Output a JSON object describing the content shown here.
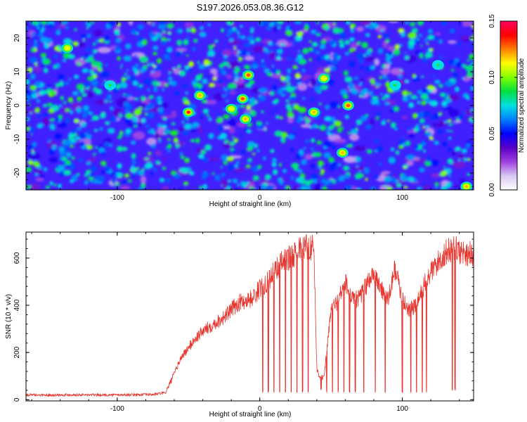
{
  "title": "S197.2026.053.08.36.G12",
  "chart_data": [
    {
      "type": "heatmap",
      "xlabel": "Height of straight line (km)",
      "ylabel": "Frequency (Hz)",
      "xlim": [
        -164,
        150
      ],
      "ylim": [
        -25,
        25
      ],
      "xticks": [
        -100,
        0,
        100
      ],
      "xtick_labels": [
        "-100",
        "0",
        "100"
      ],
      "yticks": [
        -20,
        -10,
        0,
        10,
        20
      ],
      "ytick_labels": [
        "-20",
        "-10",
        "0",
        "10",
        "20"
      ],
      "colorbar": {
        "label": "Normalized spectral amplitude",
        "range": [
          0,
          0.15
        ],
        "ticks": [
          0,
          0.05,
          0.1,
          0.15
        ],
        "tick_labels": [
          "0.00",
          "0.05",
          "0.10",
          "0.15"
        ],
        "colors": [
          "#ffffff",
          "#d9c8f2",
          "#a040e0",
          "#5a00c8",
          "#0000ff",
          "#0080ff",
          "#00e0e0",
          "#00e040",
          "#80ff00",
          "#ffff00",
          "#ff8000",
          "#ff0000",
          "#ff0060"
        ]
      },
      "background_color": "#4020ff",
      "hotspots": [
        {
          "x": -50,
          "y": -2,
          "v": 0.14
        },
        {
          "x": -42,
          "y": 3,
          "v": 0.12
        },
        {
          "x": -20,
          "y": -1,
          "v": 0.11
        },
        {
          "x": -12,
          "y": 2,
          "v": 0.13
        },
        {
          "x": -10,
          "y": -4,
          "v": 0.12
        },
        {
          "x": -8,
          "y": 9,
          "v": 0.13
        },
        {
          "x": 38,
          "y": -2,
          "v": 0.12
        },
        {
          "x": 45,
          "y": 8,
          "v": 0.11
        },
        {
          "x": 62,
          "y": 0,
          "v": 0.13
        },
        {
          "x": 58,
          "y": -14,
          "v": 0.12
        },
        {
          "x": -135,
          "y": 17,
          "v": 0.11
        },
        {
          "x": 145,
          "y": -24,
          "v": 0.12
        },
        {
          "x": -105,
          "y": 6,
          "v": 0.09
        },
        {
          "x": 95,
          "y": 6,
          "v": 0.09
        },
        {
          "x": 125,
          "y": 12,
          "v": 0.09
        }
      ]
    },
    {
      "type": "line",
      "xlabel": "Height of straight line (km)",
      "ylabel": "SNR (10 * v/v)",
      "xlim": [
        -164,
        150
      ],
      "ylim": [
        -5,
        710
      ],
      "xticks": [
        -100,
        0,
        100
      ],
      "xtick_labels": [
        "-100",
        "0",
        "100"
      ],
      "yticks": [
        0,
        200,
        400,
        600
      ],
      "ytick_labels": [
        "0",
        "200",
        "400",
        "600"
      ],
      "series": [
        {
          "name": "SNR",
          "color": "#e8352e",
          "x": [
            -164,
            -150,
            -130,
            -110,
            -90,
            -75,
            -66,
            -60,
            -55,
            -50,
            -45,
            -40,
            -35,
            -30,
            -25,
            -20,
            -15,
            -10,
            -5,
            0,
            5,
            10,
            15,
            20,
            25,
            30,
            35,
            38,
            40,
            42,
            45,
            50,
            55,
            60,
            65,
            70,
            75,
            80,
            85,
            90,
            95,
            100,
            105,
            110,
            115,
            120,
            125,
            130,
            135,
            140,
            145,
            150
          ],
          "y": [
            20,
            20,
            21,
            20,
            21,
            22,
            30,
            110,
            180,
            220,
            260,
            290,
            310,
            330,
            350,
            380,
            410,
            420,
            430,
            470,
            500,
            540,
            580,
            600,
            620,
            640,
            650,
            640,
            130,
            100,
            90,
            380,
            420,
            500,
            420,
            430,
            490,
            540,
            470,
            420,
            560,
            420,
            380,
            400,
            480,
            540,
            580,
            620,
            640,
            630,
            620,
            620
          ]
        }
      ],
      "dropouts": [
        {
          "x": 2,
          "y": 30
        },
        {
          "x": 6,
          "y": 30
        },
        {
          "x": 10,
          "y": 30
        },
        {
          "x": 14,
          "y": 30
        },
        {
          "x": 18,
          "y": 30
        },
        {
          "x": 22,
          "y": 30
        },
        {
          "x": 26,
          "y": 30
        },
        {
          "x": 30,
          "y": 30
        },
        {
          "x": 34,
          "y": 30
        },
        {
          "x": 43,
          "y": 40
        },
        {
          "x": 47,
          "y": 30
        },
        {
          "x": 51,
          "y": 30
        },
        {
          "x": 55,
          "y": 30
        },
        {
          "x": 59,
          "y": 30
        },
        {
          "x": 63,
          "y": 30
        },
        {
          "x": 67,
          "y": 30
        },
        {
          "x": 73,
          "y": 30
        },
        {
          "x": 81,
          "y": 30
        },
        {
          "x": 88,
          "y": 30
        },
        {
          "x": 100,
          "y": 30
        },
        {
          "x": 106,
          "y": 30
        },
        {
          "x": 110,
          "y": 30
        },
        {
          "x": 114,
          "y": 30
        },
        {
          "x": 117,
          "y": 30
        },
        {
          "x": 135,
          "y": 40
        },
        {
          "x": 137,
          "y": 40
        }
      ]
    }
  ]
}
